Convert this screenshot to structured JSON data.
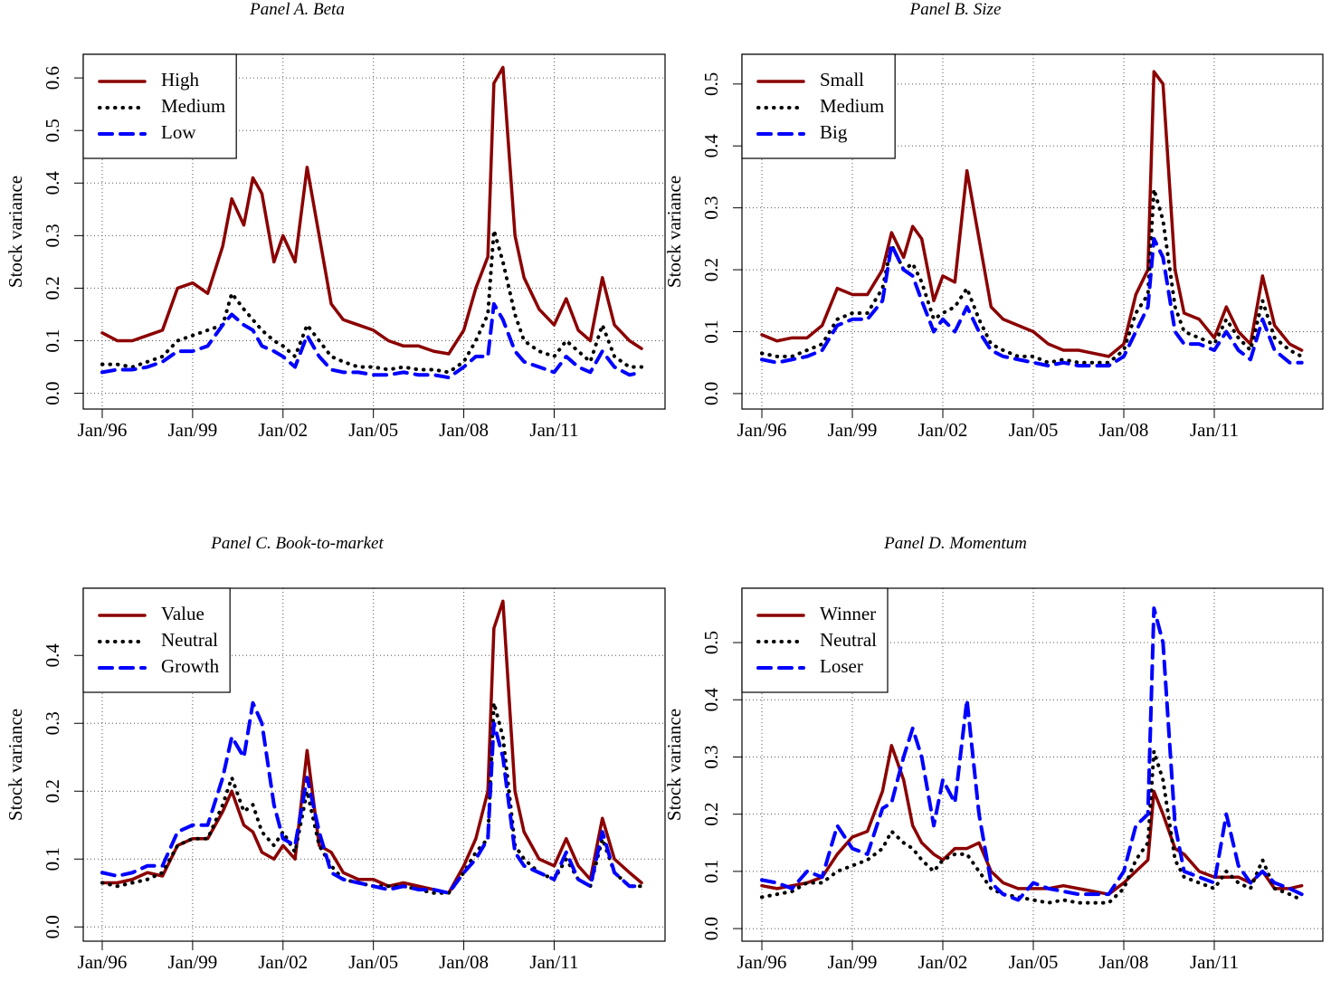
{
  "chart_data": [
    {
      "type": "line",
      "title": "Panel A. Beta",
      "y_label": "Stock variance",
      "grid": true,
      "legend": "top-left",
      "xlim": [
        1995.37,
        2014.68
      ],
      "ylim": [
        -0.03,
        0.645
      ],
      "xticks": [
        {
          "value": 1996,
          "label": "Jan/96"
        },
        {
          "value": 1999,
          "label": "Jan/99"
        },
        {
          "value": 2002,
          "label": "Jan/02"
        },
        {
          "value": 2005,
          "label": "Jan/05"
        },
        {
          "value": 2008,
          "label": "Jan/08"
        },
        {
          "value": 2011,
          "label": "Jan/11"
        }
      ],
      "yticks": [
        {
          "value": 0,
          "label": "0.0"
        },
        0.1,
        0.2,
        0.3,
        0.4,
        0.5,
        0.6
      ],
      "x": [
        1996,
        1996.5,
        1997,
        1997.5,
        1998,
        1998.5,
        1999,
        1999.5,
        2000,
        2000.3,
        2000.7,
        2001,
        2001.3,
        2001.7,
        2002,
        2002.4,
        2002.8,
        2003.2,
        2003.6,
        2004,
        2004.5,
        2005,
        2005.5,
        2006,
        2006.5,
        2007,
        2007.5,
        2008,
        2008.4,
        2008.8,
        2009,
        2009.3,
        2009.7,
        2010,
        2010.5,
        2011,
        2011.4,
        2011.8,
        2012.2,
        2012.6,
        2013,
        2013.5,
        2013.9
      ],
      "series": [
        {
          "name": "High",
          "color": "#8b0000",
          "line_style": "solid",
          "values": [
            0.115,
            0.1,
            0.1,
            0.11,
            0.12,
            0.2,
            0.21,
            0.19,
            0.28,
            0.37,
            0.32,
            0.41,
            0.38,
            0.25,
            0.3,
            0.25,
            0.43,
            0.3,
            0.17,
            0.14,
            0.13,
            0.12,
            0.1,
            0.09,
            0.09,
            0.08,
            0.075,
            0.12,
            0.2,
            0.26,
            0.59,
            0.62,
            0.3,
            0.22,
            0.16,
            0.13,
            0.18,
            0.12,
            0.1,
            0.22,
            0.13,
            0.1,
            0.085
          ]
        },
        {
          "name": "Medium",
          "color": "#000000",
          "line_style": "dotted",
          "values": [
            0.055,
            0.055,
            0.05,
            0.06,
            0.07,
            0.1,
            0.11,
            0.12,
            0.13,
            0.19,
            0.16,
            0.14,
            0.12,
            0.1,
            0.09,
            0.07,
            0.13,
            0.1,
            0.07,
            0.06,
            0.05,
            0.05,
            0.045,
            0.05,
            0.045,
            0.045,
            0.04,
            0.06,
            0.1,
            0.15,
            0.31,
            0.25,
            0.15,
            0.1,
            0.08,
            0.07,
            0.1,
            0.08,
            0.06,
            0.13,
            0.07,
            0.05,
            0.05
          ]
        },
        {
          "name": "Low",
          "color": "#0000ff",
          "line_style": "dashed",
          "values": [
            0.04,
            0.045,
            0.045,
            0.05,
            0.06,
            0.08,
            0.08,
            0.09,
            0.13,
            0.15,
            0.13,
            0.12,
            0.09,
            0.08,
            0.07,
            0.05,
            0.11,
            0.07,
            0.045,
            0.04,
            0.04,
            0.035,
            0.035,
            0.04,
            0.035,
            0.035,
            0.03,
            0.05,
            0.07,
            0.07,
            0.17,
            0.14,
            0.08,
            0.06,
            0.05,
            0.04,
            0.07,
            0.05,
            0.04,
            0.08,
            0.05,
            0.035,
            0.04
          ]
        }
      ]
    },
    {
      "type": "line",
      "title": "Panel B. Size",
      "y_label": "Stock variance",
      "grid": true,
      "legend": "top-left",
      "xlim": [
        1995.34,
        2014.6
      ],
      "ylim": [
        -0.025,
        0.548
      ],
      "xticks": [
        {
          "value": 1996,
          "label": "Jan/96"
        },
        {
          "value": 1999,
          "label": "Jan/99"
        },
        {
          "value": 2002,
          "label": "Jan/02"
        },
        {
          "value": 2005,
          "label": "Jan/05"
        },
        {
          "value": 2008,
          "label": "Jan/08"
        },
        {
          "value": 2011,
          "label": "Jan/11"
        }
      ],
      "yticks": [
        {
          "value": 0,
          "label": "0.0"
        },
        0.1,
        0.2,
        0.3,
        0.4,
        0.5
      ],
      "x": [
        1996,
        1996.5,
        1997,
        1997.5,
        1998,
        1998.5,
        1999,
        1999.5,
        2000,
        2000.3,
        2000.7,
        2001,
        2001.3,
        2001.7,
        2002,
        2002.4,
        2002.8,
        2003.2,
        2003.6,
        2004,
        2004.5,
        2005,
        2005.5,
        2006,
        2006.5,
        2007,
        2007.5,
        2008,
        2008.4,
        2008.8,
        2009,
        2009.3,
        2009.7,
        2010,
        2010.5,
        2011,
        2011.4,
        2011.8,
        2012.2,
        2012.6,
        2013,
        2013.5,
        2013.9
      ],
      "series": [
        {
          "name": "Small",
          "color": "#8b0000",
          "line_style": "solid",
          "values": [
            0.095,
            0.085,
            0.09,
            0.09,
            0.11,
            0.17,
            0.16,
            0.16,
            0.2,
            0.26,
            0.22,
            0.27,
            0.25,
            0.15,
            0.19,
            0.18,
            0.36,
            0.25,
            0.14,
            0.12,
            0.11,
            0.1,
            0.08,
            0.07,
            0.07,
            0.065,
            0.06,
            0.08,
            0.16,
            0.2,
            0.52,
            0.5,
            0.2,
            0.13,
            0.12,
            0.09,
            0.14,
            0.1,
            0.08,
            0.19,
            0.11,
            0.08,
            0.07
          ]
        },
        {
          "name": "Medium",
          "color": "#000000",
          "line_style": "dotted",
          "values": [
            0.065,
            0.06,
            0.06,
            0.07,
            0.08,
            0.12,
            0.13,
            0.13,
            0.17,
            0.24,
            0.2,
            0.21,
            0.18,
            0.12,
            0.13,
            0.14,
            0.17,
            0.12,
            0.08,
            0.07,
            0.06,
            0.06,
            0.05,
            0.055,
            0.05,
            0.05,
            0.05,
            0.07,
            0.13,
            0.16,
            0.33,
            0.28,
            0.14,
            0.1,
            0.09,
            0.08,
            0.12,
            0.09,
            0.07,
            0.15,
            0.09,
            0.07,
            0.06
          ]
        },
        {
          "name": "Big",
          "color": "#0000ff",
          "line_style": "dashed",
          "values": [
            0.055,
            0.05,
            0.055,
            0.06,
            0.07,
            0.11,
            0.12,
            0.12,
            0.15,
            0.24,
            0.2,
            0.19,
            0.15,
            0.1,
            0.12,
            0.1,
            0.14,
            0.1,
            0.07,
            0.06,
            0.055,
            0.05,
            0.045,
            0.05,
            0.045,
            0.045,
            0.045,
            0.06,
            0.1,
            0.14,
            0.25,
            0.22,
            0.1,
            0.08,
            0.08,
            0.07,
            0.1,
            0.07,
            0.055,
            0.12,
            0.07,
            0.05,
            0.05
          ]
        }
      ]
    },
    {
      "type": "line",
      "title": "Panel C. Book-to-market",
      "y_label": "Stock variance",
      "grid": true,
      "legend": "top-left",
      "xlim": [
        1995.37,
        2014.68
      ],
      "ylim": [
        -0.021,
        0.499
      ],
      "xticks": [
        {
          "value": 1996,
          "label": "Jan/96"
        },
        {
          "value": 1999,
          "label": "Jan/99"
        },
        {
          "value": 2002,
          "label": "Jan/02"
        },
        {
          "value": 2005,
          "label": "Jan/05"
        },
        {
          "value": 2008,
          "label": "Jan/08"
        },
        {
          "value": 2011,
          "label": "Jan/11"
        }
      ],
      "yticks": [
        {
          "value": 0,
          "label": "0.0"
        },
        0.1,
        0.2,
        0.3,
        0.4
      ],
      "x": [
        1996,
        1996.5,
        1997,
        1997.5,
        1998,
        1998.5,
        1999,
        1999.5,
        2000,
        2000.3,
        2000.7,
        2001,
        2001.3,
        2001.7,
        2002,
        2002.4,
        2002.8,
        2003.2,
        2003.6,
        2004,
        2004.5,
        2005,
        2005.5,
        2006,
        2006.5,
        2007,
        2007.5,
        2008,
        2008.4,
        2008.8,
        2009,
        2009.3,
        2009.7,
        2010,
        2010.5,
        2011,
        2011.4,
        2011.8,
        2012.2,
        2012.6,
        2013,
        2013.5,
        2013.9
      ],
      "series": [
        {
          "name": "Value",
          "color": "#8b0000",
          "line_style": "solid",
          "values": [
            0.065,
            0.065,
            0.07,
            0.08,
            0.075,
            0.12,
            0.13,
            0.13,
            0.17,
            0.2,
            0.15,
            0.14,
            0.11,
            0.1,
            0.12,
            0.1,
            0.26,
            0.12,
            0.11,
            0.08,
            0.07,
            0.07,
            0.06,
            0.065,
            0.06,
            0.055,
            0.05,
            0.09,
            0.13,
            0.2,
            0.44,
            0.48,
            0.2,
            0.14,
            0.1,
            0.09,
            0.13,
            0.09,
            0.07,
            0.16,
            0.1,
            0.08,
            0.065
          ]
        },
        {
          "name": "Neutral",
          "color": "#000000",
          "line_style": "dotted",
          "values": [
            0.065,
            0.06,
            0.065,
            0.07,
            0.08,
            0.12,
            0.13,
            0.13,
            0.18,
            0.22,
            0.17,
            0.18,
            0.14,
            0.12,
            0.14,
            0.11,
            0.2,
            0.12,
            0.09,
            0.07,
            0.065,
            0.06,
            0.06,
            0.06,
            0.055,
            0.05,
            0.05,
            0.08,
            0.11,
            0.13,
            0.33,
            0.28,
            0.12,
            0.1,
            0.08,
            0.07,
            0.1,
            0.07,
            0.06,
            0.13,
            0.08,
            0.06,
            0.06
          ]
        },
        {
          "name": "Growth",
          "color": "#0000ff",
          "line_style": "dashed",
          "values": [
            0.08,
            0.075,
            0.08,
            0.09,
            0.09,
            0.14,
            0.15,
            0.15,
            0.22,
            0.28,
            0.25,
            0.33,
            0.3,
            0.18,
            0.13,
            0.12,
            0.22,
            0.14,
            0.08,
            0.07,
            0.065,
            0.06,
            0.055,
            0.06,
            0.055,
            0.055,
            0.05,
            0.08,
            0.1,
            0.13,
            0.3,
            0.25,
            0.11,
            0.09,
            0.08,
            0.07,
            0.11,
            0.07,
            0.06,
            0.14,
            0.08,
            0.06,
            0.06
          ]
        }
      ]
    },
    {
      "type": "line",
      "title": "Panel D. Momentum",
      "y_label": "Stock variance",
      "grid": true,
      "legend": "top-left",
      "xlim": [
        1995.34,
        2014.6
      ],
      "ylim": [
        -0.022,
        0.595
      ],
      "xticks": [
        {
          "value": 1996,
          "label": "Jan/96"
        },
        {
          "value": 1999,
          "label": "Jan/99"
        },
        {
          "value": 2002,
          "label": "Jan/02"
        },
        {
          "value": 2005,
          "label": "Jan/05"
        },
        {
          "value": 2008,
          "label": "Jan/08"
        },
        {
          "value": 2011,
          "label": "Jan/11"
        }
      ],
      "yticks": [
        {
          "value": 0,
          "label": "0.0"
        },
        0.1,
        0.2,
        0.3,
        0.4,
        0.5
      ],
      "x": [
        1996,
        1996.5,
        1997,
        1997.5,
        1998,
        1998.5,
        1999,
        1999.5,
        2000,
        2000.3,
        2000.7,
        2001,
        2001.3,
        2001.7,
        2002,
        2002.4,
        2002.8,
        2003.2,
        2003.6,
        2004,
        2004.5,
        2005,
        2005.5,
        2006,
        2006.5,
        2007,
        2007.5,
        2008,
        2008.4,
        2008.8,
        2009,
        2009.3,
        2009.7,
        2010,
        2010.5,
        2011,
        2011.4,
        2011.8,
        2012.2,
        2012.6,
        2013,
        2013.5,
        2013.9
      ],
      "series": [
        {
          "name": "Winner",
          "color": "#8b0000",
          "line_style": "solid",
          "values": [
            0.075,
            0.07,
            0.075,
            0.08,
            0.09,
            0.13,
            0.16,
            0.17,
            0.24,
            0.32,
            0.26,
            0.18,
            0.15,
            0.13,
            0.12,
            0.14,
            0.14,
            0.15,
            0.1,
            0.08,
            0.07,
            0.07,
            0.07,
            0.075,
            0.07,
            0.065,
            0.06,
            0.08,
            0.1,
            0.12,
            0.24,
            0.2,
            0.14,
            0.13,
            0.1,
            0.09,
            0.09,
            0.09,
            0.08,
            0.1,
            0.07,
            0.07,
            0.075
          ]
        },
        {
          "name": "Neutral",
          "color": "#000000",
          "line_style": "dotted",
          "values": [
            0.055,
            0.06,
            0.065,
            0.08,
            0.08,
            0.1,
            0.11,
            0.12,
            0.14,
            0.17,
            0.15,
            0.14,
            0.12,
            0.1,
            0.12,
            0.13,
            0.13,
            0.1,
            0.07,
            0.06,
            0.055,
            0.05,
            0.045,
            0.05,
            0.045,
            0.045,
            0.045,
            0.07,
            0.12,
            0.15,
            0.31,
            0.26,
            0.12,
            0.09,
            0.08,
            0.07,
            0.1,
            0.08,
            0.07,
            0.12,
            0.07,
            0.06,
            0.05
          ]
        },
        {
          "name": "Loser",
          "color": "#0000ff",
          "line_style": "dashed",
          "values": [
            0.085,
            0.08,
            0.07,
            0.1,
            0.09,
            0.18,
            0.14,
            0.13,
            0.21,
            0.22,
            0.3,
            0.35,
            0.3,
            0.18,
            0.26,
            0.22,
            0.4,
            0.2,
            0.08,
            0.06,
            0.05,
            0.08,
            0.07,
            0.065,
            0.06,
            0.06,
            0.06,
            0.1,
            0.18,
            0.2,
            0.56,
            0.5,
            0.18,
            0.1,
            0.09,
            0.08,
            0.2,
            0.11,
            0.08,
            0.1,
            0.08,
            0.07,
            0.06
          ]
        }
      ]
    }
  ]
}
